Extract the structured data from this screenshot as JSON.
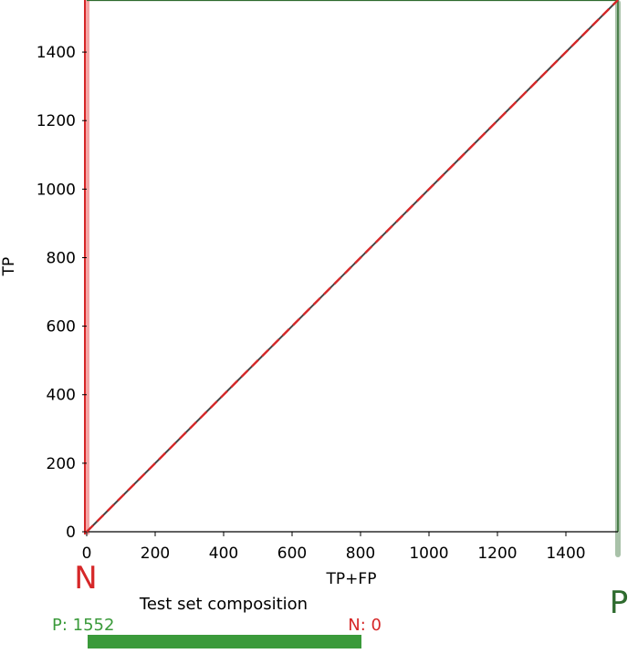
{
  "chart_data": {
    "type": "line",
    "xlabel": "TP+FP",
    "ylabel": "TP",
    "xlim": [
      0,
      1552
    ],
    "ylim": [
      0,
      1552
    ],
    "x_ticks": [
      0,
      200,
      400,
      600,
      800,
      1000,
      1200,
      1400
    ],
    "y_ticks": [
      0,
      200,
      400,
      600,
      800,
      1000,
      1200,
      1400
    ],
    "series": [
      {
        "style": "solid",
        "color": "#444444",
        "x": [
          0,
          1552
        ],
        "y": [
          0,
          1552
        ]
      },
      {
        "style": "dashed",
        "color": "#d62728",
        "x": [
          0,
          1552
        ],
        "y": [
          0,
          1552
        ]
      }
    ],
    "negative_marker": {
      "letter": "N",
      "x": 0,
      "color": "#d62728",
      "band_color": "#f4a6a6"
    },
    "positive_marker": {
      "letter": "P",
      "x": 1552,
      "color": "#2e6b2e",
      "band_color": "#a9c2a9"
    },
    "composition": {
      "title": "Test set composition",
      "positive_label": "P: 1552",
      "negative_label": "N: 0",
      "positive_count": 1552,
      "negative_count": 0,
      "positive_color": "#3a9a3a",
      "negative_color": "#d62728"
    }
  }
}
